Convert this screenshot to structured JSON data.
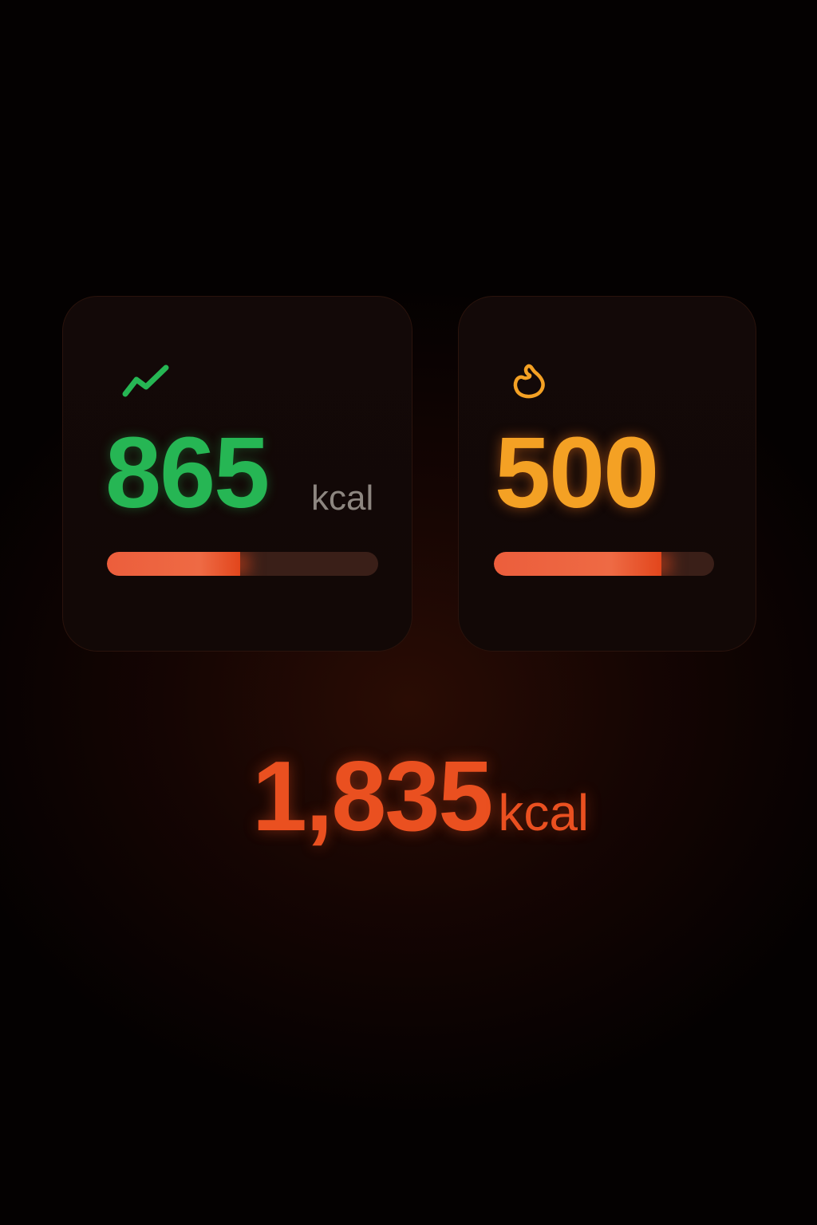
{
  "cards": [
    {
      "icon": "trend-up-icon",
      "value": "865",
      "unit": "kcal",
      "progress": 0.49,
      "color": "#26b654"
    },
    {
      "icon": "flame-icon",
      "value": "500",
      "progress": 0.76,
      "color": "#f4a124"
    }
  ],
  "total": {
    "value": "1,835",
    "unit": "kcal",
    "color": "#ea5020"
  },
  "progress_color": "#ec5e3c"
}
